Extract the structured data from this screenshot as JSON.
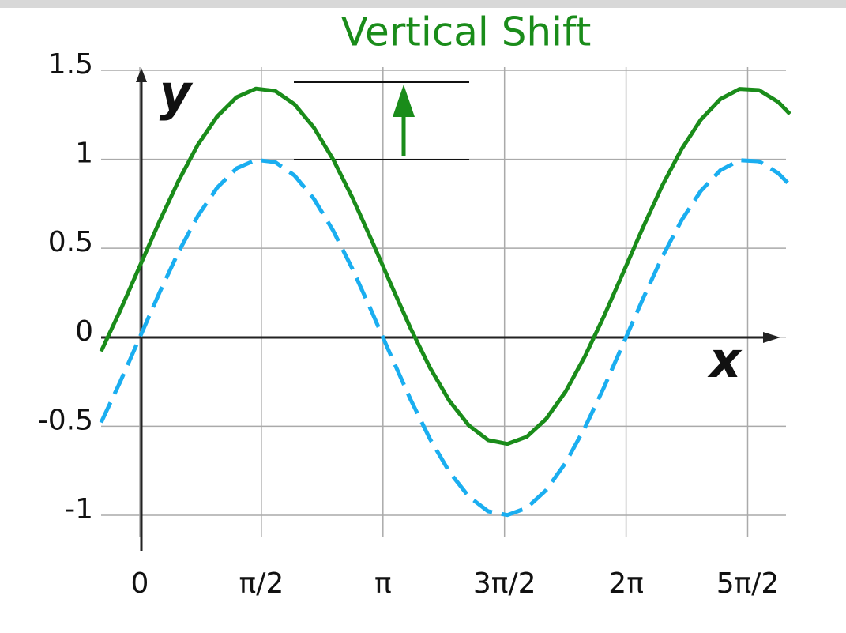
{
  "chart_data": {
    "type": "line",
    "title": "Vertical Shift",
    "x_label": "x",
    "y_label": "y",
    "x": [
      -0.5,
      -0.25,
      0,
      0.25,
      0.5,
      0.75,
      1,
      1.25,
      1.5,
      1.75,
      2,
      2.25,
      2.5,
      2.75,
      3,
      3.25,
      3.5,
      3.75,
      4,
      4.25,
      4.5,
      4.75,
      5,
      5.25,
      5.5,
      5.75,
      6,
      6.25,
      6.5,
      6.75,
      7,
      7.25,
      7.5,
      7.75,
      8,
      8.25,
      8.4
    ],
    "series": [
      {
        "color": "#1aaef0",
        "dashed": true,
        "values": [
          -0.479,
          -0.247,
          0,
          0.247,
          0.479,
          0.682,
          0.841,
          0.949,
          0.997,
          0.984,
          0.909,
          0.778,
          0.598,
          0.382,
          0.141,
          -0.108,
          -0.351,
          -0.572,
          -0.757,
          -0.895,
          -0.978,
          -0.999,
          -0.959,
          -0.859,
          -0.706,
          -0.508,
          -0.279,
          -0.033,
          0.215,
          0.451,
          0.657,
          0.823,
          0.938,
          0.995,
          0.989,
          0.922,
          0.855
        ]
      },
      {
        "color": "#1a8c1a",
        "dashed": false,
        "values": [
          -0.079,
          0.153,
          0.4,
          0.647,
          0.879,
          1.082,
          1.241,
          1.349,
          1.397,
          1.384,
          1.309,
          1.178,
          0.998,
          0.782,
          0.541,
          0.292,
          0.049,
          -0.172,
          -0.357,
          -0.495,
          -0.578,
          -0.599,
          -0.559,
          -0.459,
          -0.306,
          -0.108,
          0.121,
          0.367,
          0.615,
          0.851,
          1.057,
          1.223,
          1.338,
          1.395,
          1.389,
          1.322,
          1.255
        ]
      }
    ],
    "xlim": [
      -0.5,
      8.4
    ],
    "ylim": [
      -1.2,
      1.5
    ],
    "xticks": [
      0,
      {
        "value": 1.5708,
        "label": "π/2"
      },
      {
        "value": 3.1416,
        "label": "π"
      },
      {
        "value": 4.7124,
        "label": "3π/2"
      },
      {
        "value": 6.2832,
        "label": "2π"
      },
      {
        "value": 7.854,
        "label": "5π/2"
      }
    ],
    "yticks": [
      -1,
      -0.5,
      0,
      0.5,
      1,
      1.5
    ],
    "grid": true
  }
}
